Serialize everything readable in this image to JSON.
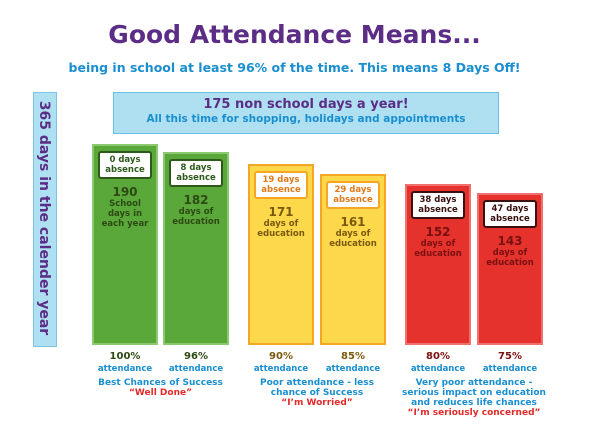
{
  "chart_data": {
    "type": "bar",
    "title": "Good Attendance Means...",
    "subtitle": "being in school at least 96% of the time. This means 8 Days Off!",
    "side_label": "365 days in the calender year",
    "note": {
      "title": "175 non school days a year!",
      "subtitle": "All this time for shopping, holidays and appointments"
    },
    "categories": [
      "100%",
      "96%",
      "90%",
      "85%",
      "80%",
      "75%"
    ],
    "category_units": [
      "attendance",
      "attendance",
      "attendance",
      "attendance",
      "attendance",
      "attendance"
    ],
    "values": [
      190,
      182,
      171,
      161,
      152,
      143
    ],
    "value_units": [
      "School days in each year",
      "days of education",
      "days of education",
      "days of education",
      "days of education",
      "days of education"
    ],
    "absence_labels": [
      "0 days absence",
      "8 days absence",
      "19 days absence",
      "29 days absence",
      "38 days absence",
      "47 days absence"
    ],
    "colors": [
      "#5aa83a",
      "#5aa83a",
      "#fcd84a",
      "#fcd84a",
      "#e5322d",
      "#e5322d"
    ],
    "groups": [
      {
        "caption": "Best Chances of Success",
        "verdict": "“Well Done”"
      },
      {
        "caption": "Poor attendance - less chance of Success",
        "verdict": "“I’m Worried”"
      },
      {
        "caption": "Very poor attendance - serious impact on education and reduces life chances",
        "verdict": "“I’m seriously concerned”"
      }
    ]
  }
}
